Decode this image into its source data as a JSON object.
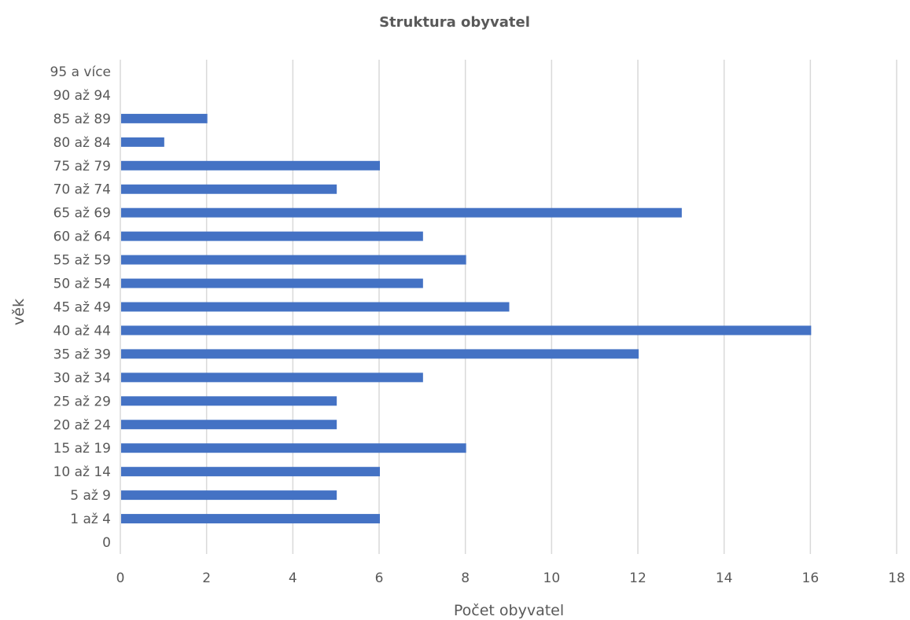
{
  "chart_data": {
    "type": "bar",
    "orientation": "horizontal",
    "title": "Struktura obyvatel",
    "xlabel": "Počet obyvatel",
    "ylabel": "věk",
    "xlim": [
      0,
      18
    ],
    "xticks": [
      "0",
      "2",
      "4",
      "6",
      "8",
      "10",
      "12",
      "14",
      "16",
      "18"
    ],
    "grid": true,
    "legend": "none",
    "bar_color": "#4472c4",
    "categories": [
      "0",
      "1 až 4",
      "5 až 9",
      "10 až 14",
      "15 až 19",
      "20 až 24",
      "25 až 29",
      "30 až 34",
      "35 až 39",
      "40 až 44",
      "45 až 49",
      "50 až 54",
      "55 až 59",
      "60 až 64",
      "65 až 69",
      "70 až 74",
      "75 až 79",
      "80 až 84",
      "85 až 89",
      "90 až 94",
      "95 a více"
    ],
    "values": [
      0,
      6,
      5,
      6,
      8,
      5,
      5,
      7,
      12,
      16,
      9,
      7,
      8,
      7,
      13,
      5,
      6,
      1,
      2,
      0,
      0
    ]
  }
}
